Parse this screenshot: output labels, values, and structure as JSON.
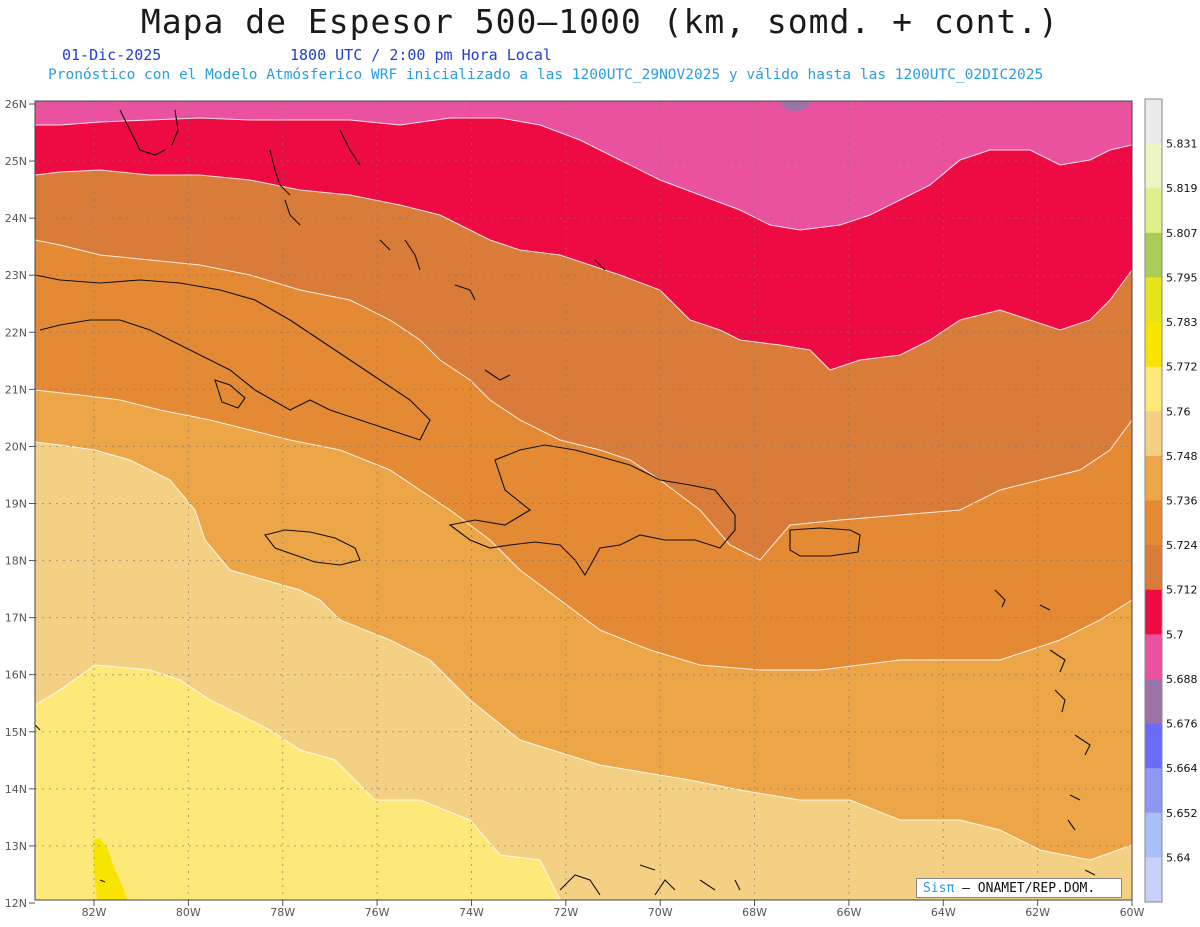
{
  "header": {
    "title": "Mapa de Espesor 500–1000 (km, somd. + cont.)",
    "date": "01-Dic-2025",
    "utc_local": "1800 UTC / 2:00 pm Hora Local",
    "model_line": "Pronóstico con el Modelo Atmósferico WRF inicializado a las 1200UTC_29NOV2025 y válido hasta las  1200UTC_02DIC2025"
  },
  "map": {
    "lat_labels": [
      "26N",
      "25N",
      "24N",
      "23N",
      "22N",
      "21N",
      "20N",
      "19N",
      "18N",
      "17N",
      "16N",
      "15N",
      "14N",
      "13N",
      "12N"
    ],
    "lon_labels": [
      "82W",
      "80W",
      "78W",
      "76W",
      "74W",
      "72W",
      "70W",
      "68W",
      "66W",
      "64W",
      "62W",
      "60W"
    ]
  },
  "colorbar": {
    "labels": [
      "5.831",
      "5.819",
      "5.807",
      "5.795",
      "5.783",
      "5.772",
      "5.76",
      "5.748",
      "5.736",
      "5.724",
      "5.712",
      "5.7",
      "5.688",
      "5.676",
      "5.664",
      "5.652",
      "5.64"
    ],
    "colors": [
      "#eaeaea",
      "#eef4c4",
      "#def08c",
      "#a8cd58",
      "#e4e418",
      "#f7e400",
      "#fde87a",
      "#f4d085",
      "#eca647",
      "#e48a35",
      "#d97c3a",
      "#ee0a43",
      "#ea529f",
      "#9c72a8",
      "#6a6cf6",
      "#9096f4",
      "#a8c0f8",
      "#c6d2f8"
    ]
  },
  "credit": {
    "sis": "Sisπ",
    "rest": "– ONAMET/REP.DOM."
  }
}
